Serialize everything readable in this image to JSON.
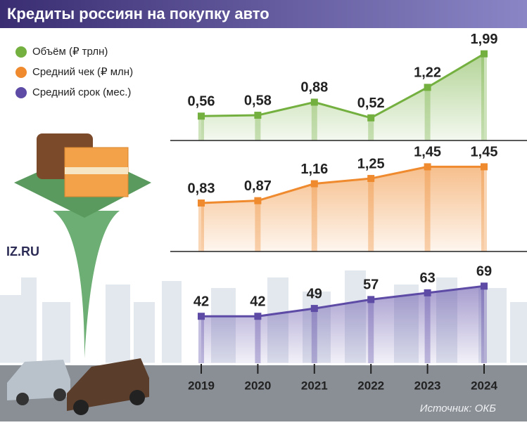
{
  "title": "Кредиты россиян на покупку авто",
  "logo": "IZ.RU",
  "source": "Источник: ОКБ",
  "chart_data": [
    {
      "type": "area",
      "name": "Объём (₽ трлн)",
      "color": "#74b040",
      "values": [
        0.56,
        0.58,
        0.88,
        0.52,
        1.22,
        1.99
      ],
      "value_labels": [
        "0,56",
        "0,58",
        "0,88",
        "0,52",
        "1,22",
        "1,99"
      ],
      "ylim": [
        0,
        2.5
      ]
    },
    {
      "type": "area",
      "name": "Средний чек (₽ млн)",
      "color": "#ef8a2e",
      "values": [
        0.83,
        0.87,
        1.16,
        1.25,
        1.45,
        1.45
      ],
      "value_labels": [
        "0,83",
        "0,87",
        "1,16",
        "1,25",
        "1,45",
        "1,45"
      ],
      "ylim": [
        0,
        1.9
      ]
    },
    {
      "type": "area",
      "name": "Средний срок (мес.)",
      "color": "#5d4ba6",
      "categories": [
        "2019",
        "2020",
        "2021",
        "2022",
        "2023",
        "2024"
      ],
      "values": [
        42,
        42,
        49,
        57,
        63,
        69
      ],
      "ylim": [
        0,
        100
      ]
    }
  ]
}
